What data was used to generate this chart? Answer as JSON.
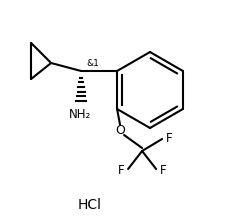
{
  "background_color": "#ffffff",
  "line_color": "#000000",
  "line_width": 1.5,
  "text_color": "#000000",
  "hcl_text": "HCl",
  "stereo_label": "&1",
  "amine_label": "NH₂",
  "oxygen_label": "O",
  "figsize": [
    2.26,
    2.23
  ],
  "dpi": 100
}
